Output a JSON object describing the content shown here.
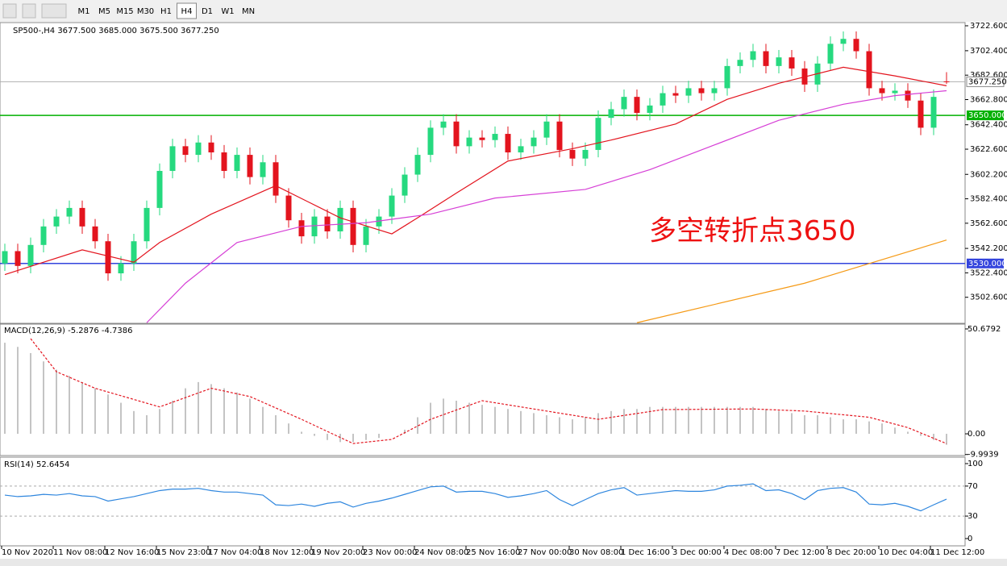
{
  "chart_data": {
    "type": "candlestick",
    "title": "SP500-,H4 3677.500 3685.000 3675.500 3677.250",
    "toolbar": {
      "buttons": [
        "M1",
        "M5",
        "M15",
        "M30",
        "H1",
        "H4",
        "D1",
        "W1",
        "MN"
      ],
      "active": 5
    },
    "categories": [
      "10 Nov 2020",
      null,
      null,
      null,
      "11 Nov 08:00",
      null,
      null,
      null,
      "12 Nov 16:00",
      null,
      null,
      null,
      "15 Nov 23:00",
      null,
      null,
      null,
      "17 Nov 04:00",
      null,
      null,
      null,
      "18 Nov 12:00",
      null,
      null,
      null,
      "19 Nov 20:00",
      null,
      null,
      null,
      "23 Nov 00:00",
      null,
      null,
      null,
      "24 Nov 08:00",
      null,
      null,
      null,
      "25 Nov 16:00",
      null,
      null,
      null,
      "27 Nov 00:00",
      null,
      null,
      null,
      "30 Nov 08:00",
      null,
      null,
      null,
      "1 Dec 16:00",
      null,
      null,
      null,
      "3 Dec 00:00",
      null,
      null,
      null,
      "4 Dec 08:00",
      null,
      null,
      null,
      "7 Dec 12:00",
      null,
      null,
      null,
      "8 Dec 20:00",
      null,
      null,
      null,
      "10 Dec 04:00",
      null,
      null,
      null,
      "11 Dec 12:00",
      null
    ],
    "open": [
      3530,
      3540,
      3528,
      3545,
      3560,
      3568,
      3575,
      3560,
      3548,
      3522,
      3530,
      3548,
      3575,
      3605,
      3625,
      3618,
      3628,
      3620,
      3605,
      3618,
      3600,
      3612,
      3585,
      3565,
      3552,
      3568,
      3556,
      3575,
      3545,
      3560,
      3568,
      3585,
      3602,
      3618,
      3640,
      3645,
      3625,
      3632,
      3630,
      3635,
      3620,
      3625,
      3632,
      3645,
      3622,
      3615,
      3622,
      3648,
      3655,
      3665,
      3652,
      3658,
      3668,
      3666,
      3672,
      3668,
      3672,
      3690,
      3695,
      3702,
      3690,
      3697,
      3688,
      3675,
      3692,
      3708,
      3712,
      3702,
      3672,
      3668,
      3670,
      3662,
      3640,
      3677.5
    ],
    "high": [
      3546,
      3546,
      3551,
      3566,
      3574,
      3581,
      3581,
      3566,
      3554,
      3536,
      3554,
      3581,
      3611,
      3631,
      3631,
      3634,
      3634,
      3626,
      3624,
      3624,
      3618,
      3618,
      3591,
      3571,
      3574,
      3574,
      3581,
      3581,
      3566,
      3574,
      3591,
      3608,
      3624,
      3646,
      3651,
      3651,
      3638,
      3638,
      3641,
      3641,
      3631,
      3638,
      3651,
      3651,
      3628,
      3628,
      3654,
      3661,
      3671,
      3671,
      3664,
      3674,
      3674,
      3678,
      3678,
      3678,
      3696,
      3701,
      3708,
      3708,
      3703,
      3703,
      3694,
      3698,
      3714,
      3718,
      3718,
      3708,
      3678,
      3676,
      3676,
      3668,
      3671,
      3685
    ],
    "low": [
      3524,
      3522,
      3522,
      3539,
      3554,
      3562,
      3554,
      3542,
      3516,
      3516,
      3524,
      3542,
      3569,
      3599,
      3612,
      3612,
      3614,
      3599,
      3599,
      3594,
      3594,
      3579,
      3559,
      3546,
      3546,
      3550,
      3550,
      3539,
      3539,
      3554,
      3562,
      3579,
      3596,
      3612,
      3634,
      3619,
      3619,
      3624,
      3624,
      3614,
      3614,
      3619,
      3626,
      3616,
      3609,
      3609,
      3616,
      3642,
      3649,
      3646,
      3646,
      3652,
      3660,
      3660,
      3662,
      3662,
      3666,
      3684,
      3689,
      3684,
      3684,
      3682,
      3669,
      3669,
      3686,
      3702,
      3696,
      3666,
      3662,
      3662,
      3656,
      3634,
      3634,
      3675.5
    ],
    "close": [
      3540,
      3528,
      3545,
      3560,
      3568,
      3575,
      3560,
      3548,
      3522,
      3530,
      3548,
      3575,
      3605,
      3625,
      3618,
      3628,
      3620,
      3605,
      3618,
      3600,
      3612,
      3585,
      3565,
      3552,
      3568,
      3556,
      3575,
      3545,
      3560,
      3568,
      3585,
      3602,
      3618,
      3640,
      3645,
      3625,
      3632,
      3630,
      3635,
      3620,
      3625,
      3632,
      3645,
      3622,
      3615,
      3622,
      3648,
      3655,
      3665,
      3652,
      3658,
      3668,
      3666,
      3672,
      3668,
      3672,
      3690,
      3695,
      3702,
      3690,
      3697,
      3688,
      3675,
      3692,
      3708,
      3712,
      3702,
      3672,
      3668,
      3670,
      3662,
      3640,
      3665,
      3677.25
    ],
    "up_color": "#26d97f",
    "down_color": "#e3141e",
    "lines": [
      {
        "color": "#e3141e",
        "x": [
          0,
          6,
          10,
          12,
          16,
          21,
          26,
          30,
          32,
          35,
          39,
          44,
          47,
          52,
          56,
          60,
          65,
          69,
          73
        ],
        "values": [
          3521,
          3541,
          3531,
          3547,
          3570,
          3593,
          3567,
          3554,
          3567,
          3587,
          3613,
          3623,
          3630,
          3643,
          3663,
          3676,
          3689,
          3682,
          3674
        ]
      },
      {
        "color": "#d63fd6",
        "x": [
          11,
          14,
          18,
          23,
          28,
          33,
          38,
          45,
          50,
          55,
          60,
          65,
          69,
          73
        ],
        "values": [
          3482,
          3514,
          3547,
          3560,
          3563,
          3570,
          3583,
          3590,
          3606,
          3626,
          3646,
          3659,
          3666,
          3670
        ]
      },
      {
        "color": "#f59a16",
        "x": [
          49,
          62,
          73
        ],
        "values": [
          3482,
          3514,
          3549
        ]
      }
    ],
    "levels": [
      {
        "value": 3650,
        "label": "3650.000",
        "color": "#00b000"
      },
      {
        "value": 3530,
        "label": "3530.000",
        "color": "#3344dd"
      }
    ],
    "price_line": {
      "value": 3677.25,
      "label": "3677.250",
      "color": "#b0b0b0"
    },
    "annotation": {
      "text": "多空转折点3650",
      "color": "#ee1111"
    },
    "ylim": [
      3481.5,
      3725.2
    ],
    "yticks": [
      {
        "value": 3722.6,
        "label": "3722.600"
      },
      {
        "value": 3702.4,
        "label": "3702.400"
      },
      {
        "value": 3682.6,
        "label": "3682.600"
      },
      {
        "value": 3662.8,
        "label": "3662.800"
      },
      {
        "value": 3642.4,
        "label": "3642.400"
      },
      {
        "value": 3622.6,
        "label": "3622.600"
      },
      {
        "value": 3602.2,
        "label": "3602.200"
      },
      {
        "value": 3582.4,
        "label": "3582.400"
      },
      {
        "value": 3562.6,
        "label": "3562.600"
      },
      {
        "value": 3542.2,
        "label": "3542.200"
      },
      {
        "value": 3522.4,
        "label": "3522.400"
      },
      {
        "value": 3502.6,
        "label": "3502.600"
      }
    ],
    "macd": {
      "label": "MACD(12,26,9) -5.2876 -4.7386",
      "values": [
        44,
        42,
        39,
        35,
        31,
        28,
        25,
        22,
        19,
        15,
        11,
        9,
        12,
        16,
        22,
        25,
        24,
        22,
        20,
        17,
        13,
        9,
        5,
        1,
        -1,
        -3,
        -4,
        -4,
        -3,
        -2,
        0,
        2,
        8,
        15,
        17,
        16,
        15,
        14,
        13,
        12,
        11,
        10,
        9,
        8,
        7,
        8,
        10,
        11,
        12,
        12,
        13,
        13,
        13,
        13,
        13,
        13,
        13,
        13,
        13,
        12,
        11,
        10,
        9,
        9,
        8,
        7,
        7,
        6,
        5,
        3,
        1,
        -1,
        -3,
        -5.2876
      ],
      "color": "#b0b0b0",
      "signal": {
        "color": "#e3141e",
        "x": [
          2,
          4,
          7,
          12,
          16,
          19,
          23,
          27,
          30,
          33,
          37,
          42,
          46,
          51,
          58,
          62,
          67,
          70,
          73
        ],
        "values": [
          46,
          30,
          22,
          13,
          22,
          18,
          7,
          -4.7,
          -2.7,
          7,
          16,
          11,
          7,
          11.7,
          12,
          11,
          8,
          3,
          -4.7386
        ]
      },
      "ylim": [
        -10.5,
        53.0
      ],
      "yticks": [
        {
          "value": 50.6792,
          "label": "50.6792"
        },
        {
          "value": 0,
          "label": "0.00"
        },
        -9.9939
      ]
    },
    "rsi": {
      "label": "RSI(14) 52.6454",
      "color": "#2e86de",
      "values": [
        58,
        56,
        57,
        59,
        58,
        60,
        57,
        56,
        50,
        53,
        56,
        60,
        64,
        66,
        66,
        67,
        64,
        62,
        62,
        60,
        58,
        45,
        44,
        46,
        43,
        47,
        49,
        42,
        47,
        50,
        54,
        59,
        64,
        69,
        70,
        62,
        63,
        63,
        60,
        55,
        57,
        60,
        64,
        52,
        44,
        52,
        60,
        65,
        68,
        58,
        60,
        62,
        64,
        63,
        63,
        65,
        70,
        71,
        73,
        64,
        65,
        60,
        52,
        64,
        67,
        68,
        62,
        46,
        45,
        47,
        43,
        37,
        45,
        52.6454
      ],
      "levels": [
        70,
        30
      ],
      "ylim": [
        -9.7,
        108.6
      ],
      "yticks": [
        100,
        70,
        30,
        0
      ]
    }
  }
}
